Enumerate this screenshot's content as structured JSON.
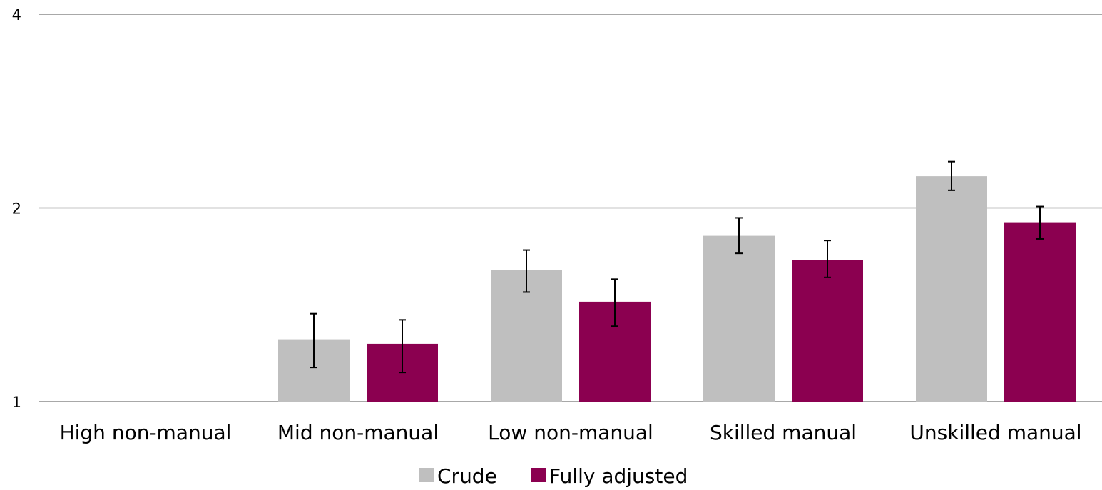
{
  "chart_data": {
    "type": "bar",
    "title": "",
    "xlabel": "",
    "ylabel": "",
    "y_scale": "log",
    "ylim": [
      1,
      4
    ],
    "yticks": [
      1,
      2,
      4
    ],
    "ytick_labels": [
      "1",
      "2",
      "4"
    ],
    "grid": true,
    "legend_position": "bottom",
    "categories": [
      "High non-manual",
      "Mid non-manual",
      "Low non-manual",
      "Skilled manual",
      "Unskilled manual"
    ],
    "series": [
      {
        "name": "Crude",
        "color": "#bfbfbf",
        "values": [
          1.0,
          1.25,
          1.6,
          1.81,
          2.24
        ],
        "ci_lower": [
          null,
          1.13,
          1.48,
          1.7,
          2.13
        ],
        "ci_upper": [
          null,
          1.37,
          1.72,
          1.93,
          2.36
        ]
      },
      {
        "name": "Fully adjusted",
        "color": "#8b0050",
        "values": [
          1.0,
          1.23,
          1.43,
          1.66,
          1.9
        ],
        "ci_lower": [
          null,
          1.11,
          1.31,
          1.56,
          1.79
        ],
        "ci_upper": [
          null,
          1.34,
          1.55,
          1.78,
          2.01
        ]
      }
    ]
  }
}
